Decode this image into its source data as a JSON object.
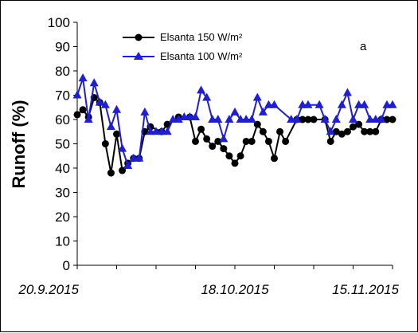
{
  "chart_data": {
    "type": "line",
    "title": "",
    "ylabel": "Runoff (%)",
    "xlabel": "",
    "ylim": [
      0,
      100
    ],
    "yticks": [
      "0",
      "10",
      "20",
      "30",
      "40",
      "50",
      "60",
      "70",
      "80",
      "90",
      "100"
    ],
    "xlim": [
      "2015-09-20",
      "2015-11-15"
    ],
    "xticks": [
      {
        "date": "2015-09-20",
        "label": "20.9.2015"
      },
      {
        "date": "2015-10-18",
        "label": "18.10.2015"
      },
      {
        "date": "2015-11-15",
        "label": "15.11.2015"
      }
    ],
    "grid": false,
    "legend_position": "top-left",
    "annotation": "a",
    "series": [
      {
        "name": "Elsanta 150 W/m²",
        "color": "#000000",
        "marker": "circle",
        "x": [
          "2015-09-20",
          "2015-09-21",
          "2015-09-22",
          "2015-09-23",
          "2015-09-24",
          "2015-09-25",
          "2015-09-26",
          "2015-09-27",
          "2015-09-28",
          "2015-09-29",
          "2015-09-30",
          "2015-10-01",
          "2015-10-02",
          "2015-10-03",
          "2015-10-05",
          "2015-10-06",
          "2015-10-08",
          "2015-10-10",
          "2015-10-11",
          "2015-10-12",
          "2015-10-13",
          "2015-10-14",
          "2015-10-15",
          "2015-10-16",
          "2015-10-17",
          "2015-10-18",
          "2015-10-19",
          "2015-10-20",
          "2015-10-21",
          "2015-10-22",
          "2015-10-23",
          "2015-10-24",
          "2015-10-25",
          "2015-10-26",
          "2015-10-27",
          "2015-10-29",
          "2015-10-30",
          "2015-10-31",
          "2015-11-01",
          "2015-11-03",
          "2015-11-04",
          "2015-11-05",
          "2015-11-06",
          "2015-11-07",
          "2015-11-08",
          "2015-11-09",
          "2015-11-10",
          "2015-11-11",
          "2015-11-12",
          "2015-11-13",
          "2015-11-14",
          "2015-11-15"
        ],
        "values": [
          62,
          64,
          61,
          69,
          67,
          50,
          38,
          54,
          39,
          42,
          44,
          44,
          55,
          57,
          55,
          58,
          61,
          61,
          51,
          56,
          52,
          49,
          51,
          48,
          45,
          42,
          45,
          51,
          51,
          58,
          55,
          51,
          44,
          55,
          51,
          60,
          60,
          60,
          60,
          60,
          51,
          55,
          54,
          55,
          57,
          58,
          55,
          55,
          55,
          60,
          60,
          60
        ]
      },
      {
        "name": "Elsanta 100 W/m²",
        "color": "#1f1fd0",
        "marker": "triangle",
        "x": [
          "2015-09-20",
          "2015-09-21",
          "2015-09-22",
          "2015-09-23",
          "2015-09-24",
          "2015-09-25",
          "2015-09-26",
          "2015-09-27",
          "2015-09-28",
          "2015-09-29",
          "2015-09-30",
          "2015-10-01",
          "2015-10-02",
          "2015-10-03",
          "2015-10-04",
          "2015-10-05",
          "2015-10-06",
          "2015-10-07",
          "2015-10-08",
          "2015-10-09",
          "2015-10-10",
          "2015-10-11",
          "2015-10-12",
          "2015-10-13",
          "2015-10-14",
          "2015-10-15",
          "2015-10-16",
          "2015-10-17",
          "2015-10-18",
          "2015-10-19",
          "2015-10-20",
          "2015-10-21",
          "2015-10-22",
          "2015-10-23",
          "2015-10-24",
          "2015-10-25",
          "2015-10-28",
          "2015-10-29",
          "2015-10-30",
          "2015-10-31",
          "2015-11-02",
          "2015-11-03",
          "2015-11-04",
          "2015-11-05",
          "2015-11-06",
          "2015-11-07",
          "2015-11-08",
          "2015-11-09",
          "2015-11-10",
          "2015-11-11",
          "2015-11-12",
          "2015-11-13",
          "2015-11-14",
          "2015-11-15"
        ],
        "values": [
          70,
          77,
          60,
          75,
          67,
          66,
          57,
          64,
          48,
          41,
          44,
          44,
          63,
          55,
          55,
          55,
          55,
          60,
          60,
          61,
          61,
          61,
          72,
          69,
          60,
          60,
          52,
          60,
          63,
          60,
          60,
          60,
          69,
          63,
          66,
          66,
          60,
          60,
          66,
          66,
          66,
          60,
          55,
          60,
          66,
          71,
          60,
          66,
          66,
          60,
          60,
          60,
          66,
          66
        ]
      }
    ]
  }
}
